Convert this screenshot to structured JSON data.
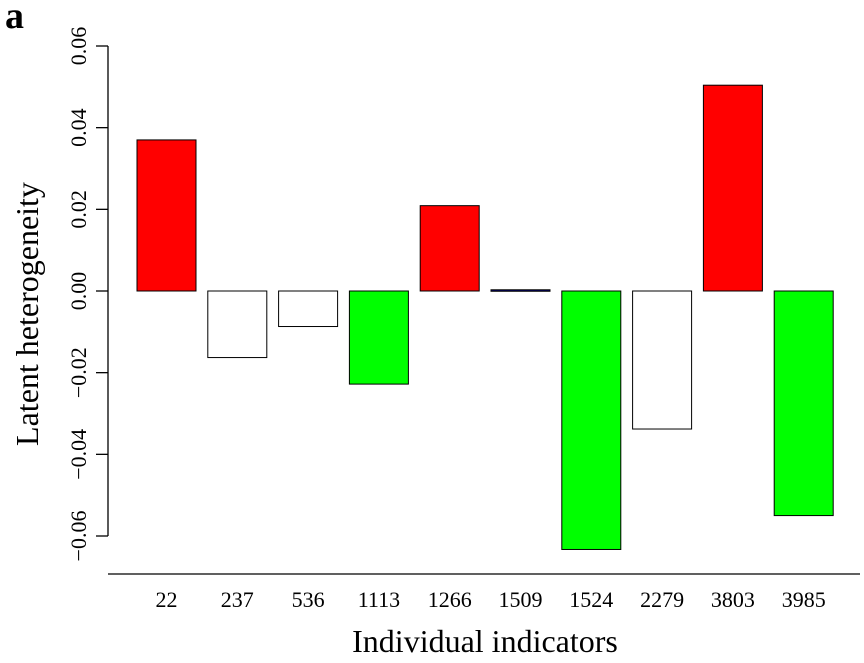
{
  "panel_label": "a",
  "chart_data": {
    "type": "bar",
    "title": "",
    "xlabel": "Individual indicators",
    "ylabel": "Latent heterogeneity",
    "ylim": [
      -0.068,
      0.06
    ],
    "yticks": [
      -0.06,
      -0.04,
      -0.02,
      0.0,
      0.02,
      0.04,
      0.06
    ],
    "ytick_labels": [
      "−0.06",
      "−0.04",
      "−0.02",
      "0.00",
      "0.02",
      "0.04",
      "0.06"
    ],
    "categories": [
      "22",
      "237",
      "536",
      "1113",
      "1266",
      "1509",
      "1524",
      "2279",
      "3803",
      "3985"
    ],
    "values": [
      0.037,
      -0.0163,
      -0.0087,
      -0.0228,
      0.0209,
      0.0003,
      -0.0633,
      -0.0338,
      0.0504,
      -0.055
    ],
    "colors": [
      "#ff0000",
      "#ffffff",
      "#ffffff",
      "#00ff00",
      "#ff0000",
      "#000080",
      "#00ff00",
      "#ffffff",
      "#ff0000",
      "#00ff00"
    ],
    "grid": false,
    "legend": "none"
  }
}
